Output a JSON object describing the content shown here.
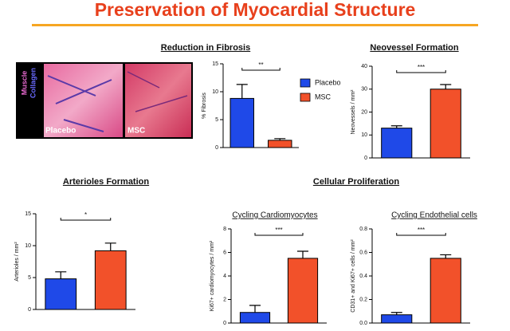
{
  "slide": {
    "title": "Preservation of Myocardial Structure",
    "headings": [
      "Cellular Proliferation"
    ]
  },
  "micrograph": {
    "stain_labels": [
      "Muscle",
      "Collagen"
    ],
    "panel_labels": [
      "Placebo",
      "MSC"
    ]
  },
  "chart_data": [
    {
      "type": "bar",
      "title": "Reduction in Fibrosis",
      "y_label": "% Fibrosis",
      "ylim": [
        0,
        15
      ],
      "yticks": [
        0,
        5,
        10,
        15
      ],
      "annotation": "**",
      "legend": "right",
      "series": [
        {
          "name": "Placebo",
          "color": "#1f49e8",
          "values": [
            8.8
          ],
          "errors": [
            2.5
          ]
        },
        {
          "name": "MSC",
          "color": "#f2512a",
          "values": [
            1.3
          ],
          "errors": [
            0.3
          ]
        }
      ]
    },
    {
      "type": "bar",
      "title": "Neovessel Formation",
      "y_label": "Neovessels / mm²",
      "ylim": [
        0,
        40
      ],
      "yticks": [
        0,
        10,
        20,
        30,
        40
      ],
      "annotation": "***",
      "series": [
        {
          "color": "#1f49e8",
          "values": [
            13
          ],
          "errors": [
            1
          ]
        },
        {
          "color": "#f2512a",
          "values": [
            30
          ],
          "errors": [
            2
          ]
        }
      ]
    },
    {
      "type": "bar",
      "title": "Arterioles Formation",
      "y_label": "Arterioles / mm²",
      "ylim": [
        0,
        15
      ],
      "yticks": [
        0,
        5,
        10,
        15
      ],
      "annotation": "*",
      "series": [
        {
          "color": "#1f49e8",
          "values": [
            4.8
          ],
          "errors": [
            1.1
          ]
        },
        {
          "color": "#f2512a",
          "values": [
            9.2
          ],
          "errors": [
            1.2
          ]
        }
      ]
    },
    {
      "type": "bar",
      "title": "Cycling Cardiomyocytes",
      "y_label": "Ki67+ cardiomyocytes / mm²",
      "ylim": [
        0,
        8
      ],
      "yticks": [
        0,
        2,
        4,
        6,
        8
      ],
      "annotation": "***",
      "series": [
        {
          "color": "#1f49e8",
          "values": [
            0.9
          ],
          "errors": [
            0.6
          ]
        },
        {
          "color": "#f2512a",
          "values": [
            5.5
          ],
          "errors": [
            0.6
          ]
        }
      ]
    },
    {
      "type": "bar",
      "title": "Cycling Endothelial cells",
      "y_label": "CD31+ and Ki67+ cells / mm²",
      "ylim": [
        0,
        0.8
      ],
      "yticks": [
        {
          "value": 0,
          "label": "0.0"
        },
        0.2,
        0.4,
        0.6,
        0.8
      ],
      "annotation": "***",
      "series": [
        {
          "color": "#1f49e8",
          "values": [
            0.07
          ],
          "errors": [
            0.02
          ]
        },
        {
          "color": "#f2512a",
          "values": [
            0.55
          ],
          "errors": [
            0.03
          ]
        }
      ]
    }
  ]
}
